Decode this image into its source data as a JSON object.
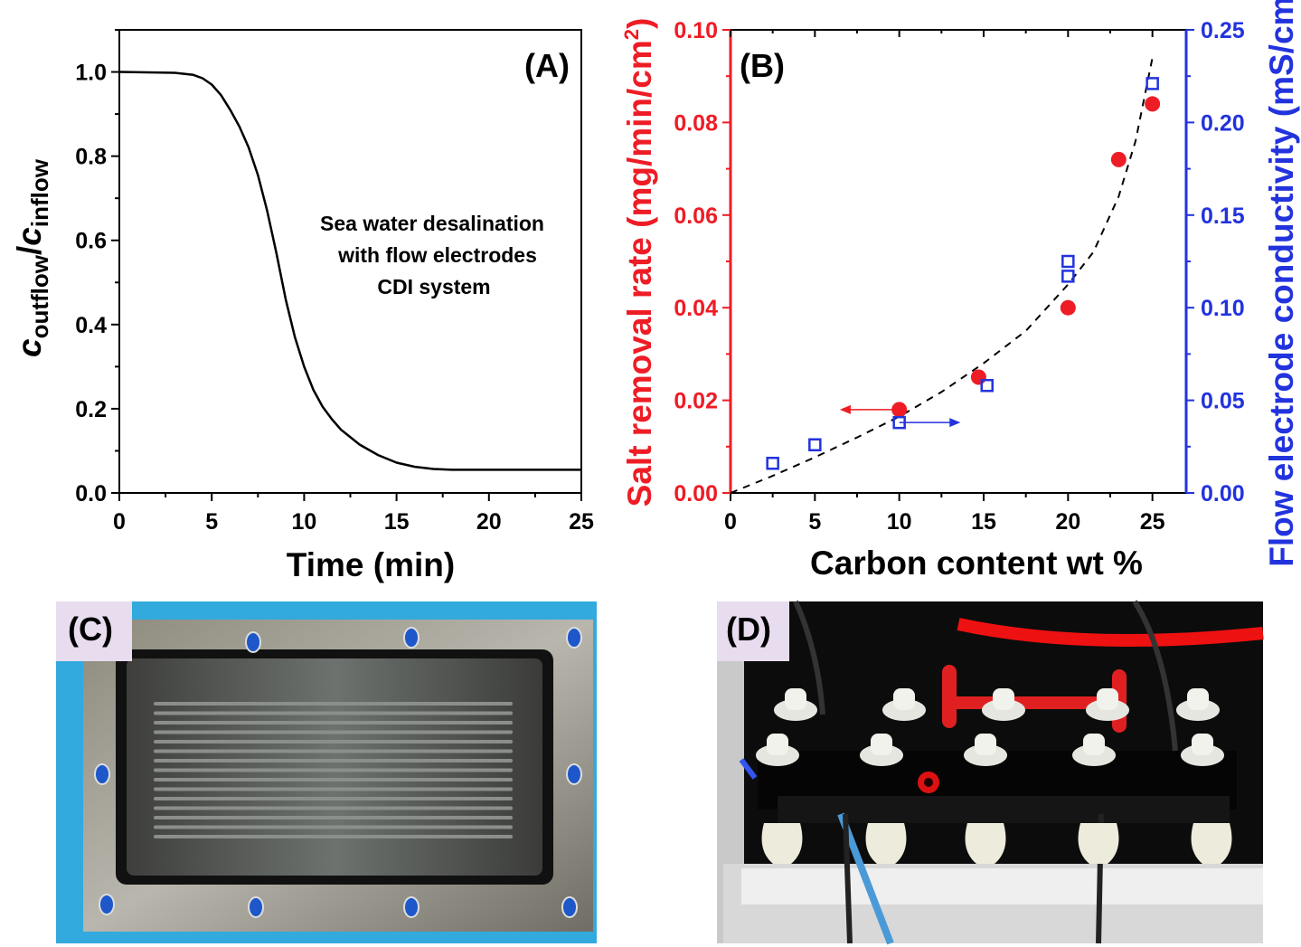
{
  "chart_data": [
    {
      "type": "line",
      "panel_label": "(A)",
      "xlabel": "Time (min)",
      "ylabel_parts": {
        "c1": "c",
        "sub1": "outflow",
        "slash": "/",
        "c2": "c",
        "sub2": "inflow"
      },
      "annotation": [
        "Sea water desalination",
        "with flow electrodes",
        "CDI system"
      ],
      "xlim": [
        0,
        25
      ],
      "ylim": [
        0,
        1.1
      ],
      "xticks": [
        "0",
        "5",
        "10",
        "15",
        "20",
        "25"
      ],
      "yticks": [
        "0.0",
        "0.2",
        "0.4",
        "0.6",
        "0.8",
        "1.0"
      ],
      "grid": false,
      "series": [
        {
          "color": "#000000",
          "x": [
            0,
            3,
            4,
            4.5,
            5,
            5.5,
            6,
            6.5,
            7,
            7.5,
            8,
            8.5,
            9,
            9.5,
            10,
            10.5,
            11,
            11.5,
            12,
            13,
            14,
            15,
            16,
            17,
            18,
            20,
            25
          ],
          "y": [
            1.0,
            0.998,
            0.993,
            0.985,
            0.97,
            0.945,
            0.91,
            0.87,
            0.82,
            0.755,
            0.67,
            0.57,
            0.46,
            0.37,
            0.3,
            0.245,
            0.205,
            0.175,
            0.15,
            0.115,
            0.09,
            0.072,
            0.062,
            0.057,
            0.055,
            0.055,
            0.055
          ]
        }
      ]
    },
    {
      "type": "scatter",
      "panel_label": "(B)",
      "xlabel": "Carbon content wt %",
      "ylabel_left": "Salt removal rate (mg/min/cm",
      "ylabel_left_sup": "2",
      "ylabel_left_end": ")",
      "ylabel_right": "Flow electrode conductivity (mS/cm)",
      "xlim": [
        0,
        27
      ],
      "ylim_left": [
        0,
        0.1
      ],
      "ylim_right": [
        0,
        0.25
      ],
      "xticks": [
        "0",
        "5",
        "10",
        "15",
        "20",
        "25"
      ],
      "yticks_left": [
        "0.00",
        "0.02",
        "0.04",
        "0.06",
        "0.08",
        "0.10"
      ],
      "yticks_right": [
        "0.00",
        "0.05",
        "0.10",
        "0.15",
        "0.20",
        "0.25"
      ],
      "grid": false,
      "left_color": "#ee1c25",
      "right_color": "#2233dd",
      "series": [
        {
          "marker": "filled-circle",
          "axis": "left",
          "color": "#ee1c25",
          "x": [
            10,
            14.7,
            20,
            23,
            25
          ],
          "y": [
            0.018,
            0.025,
            0.04,
            0.072,
            0.084
          ]
        },
        {
          "marker": "open-square",
          "axis": "right",
          "color": "#2233dd",
          "x": [
            2.5,
            5,
            10,
            15.2,
            20,
            20,
            25
          ],
          "y": [
            0.016,
            0.026,
            0.038,
            0.058,
            0.125,
            0.117,
            0.221
          ]
        },
        {
          "marker": "dashed-fit",
          "axis": "left",
          "color": "#000000",
          "x": [
            0,
            2.5,
            5,
            7.5,
            10,
            12.5,
            15,
            17.5,
            20,
            21.5,
            23,
            24,
            25
          ],
          "y": [
            0,
            0.0037,
            0.0077,
            0.012,
            0.0165,
            0.0218,
            0.028,
            0.035,
            0.045,
            0.052,
            0.064,
            0.076,
            0.094
          ]
        }
      ]
    }
  ],
  "photos": {
    "c_label": "(C)",
    "d_label": "(D)"
  }
}
